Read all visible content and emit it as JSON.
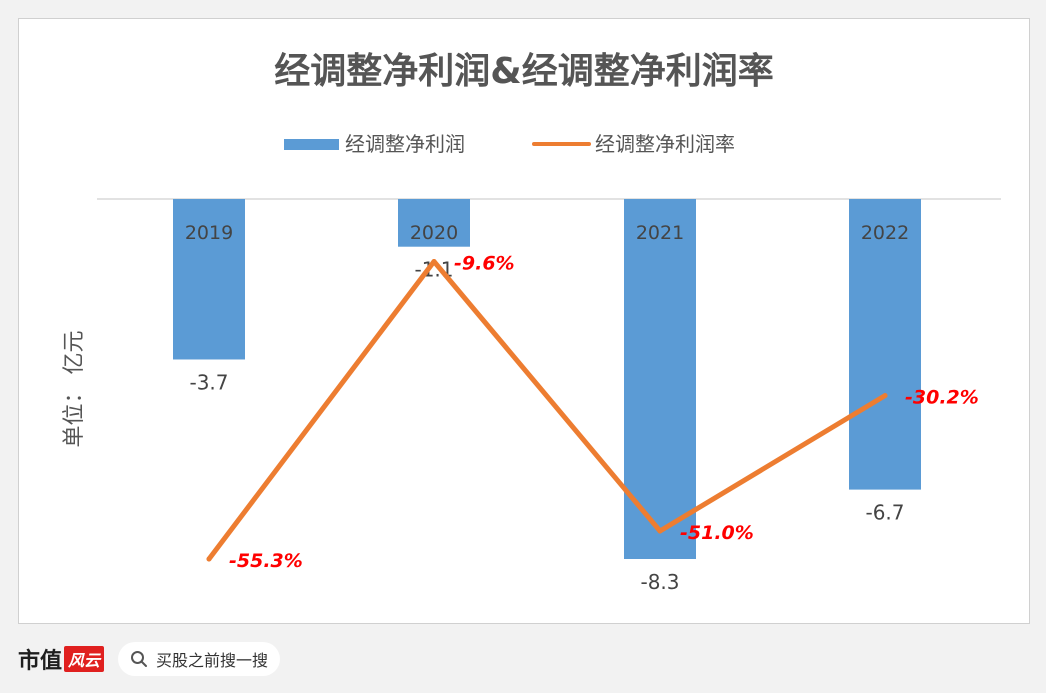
{
  "chart_data": {
    "type": "bar",
    "title": "经调整净利润&经调整净利润率",
    "categories": [
      "2019",
      "2020",
      "2021",
      "2022"
    ],
    "series": [
      {
        "name": "经调整净利润",
        "kind": "bar",
        "color": "#5b9bd5",
        "values": [
          -3.7,
          -1.1,
          -8.3,
          -6.7
        ],
        "labels": [
          "-3.7",
          "-1.1",
          "-8.3",
          "-6.7"
        ]
      },
      {
        "name": "经调整净利润率",
        "kind": "line",
        "color": "#ed7d31",
        "values": [
          -55.3,
          -9.6,
          -51.0,
          -30.2
        ],
        "labels": [
          "-55.3%",
          "-9.6%",
          "-51.0%",
          "-30.2%"
        ],
        "unit": "%"
      }
    ],
    "ylabel": "单位： 亿元",
    "y_range_bar": [
      -9,
      0
    ],
    "y_range_line": [
      -60,
      0
    ],
    "legend_position": "top",
    "label_color": "#ff0000",
    "grid": false
  },
  "footer": {
    "brand_name": "市值",
    "brand_tag": "风云",
    "search_placeholder": "买股之前搜一搜"
  }
}
